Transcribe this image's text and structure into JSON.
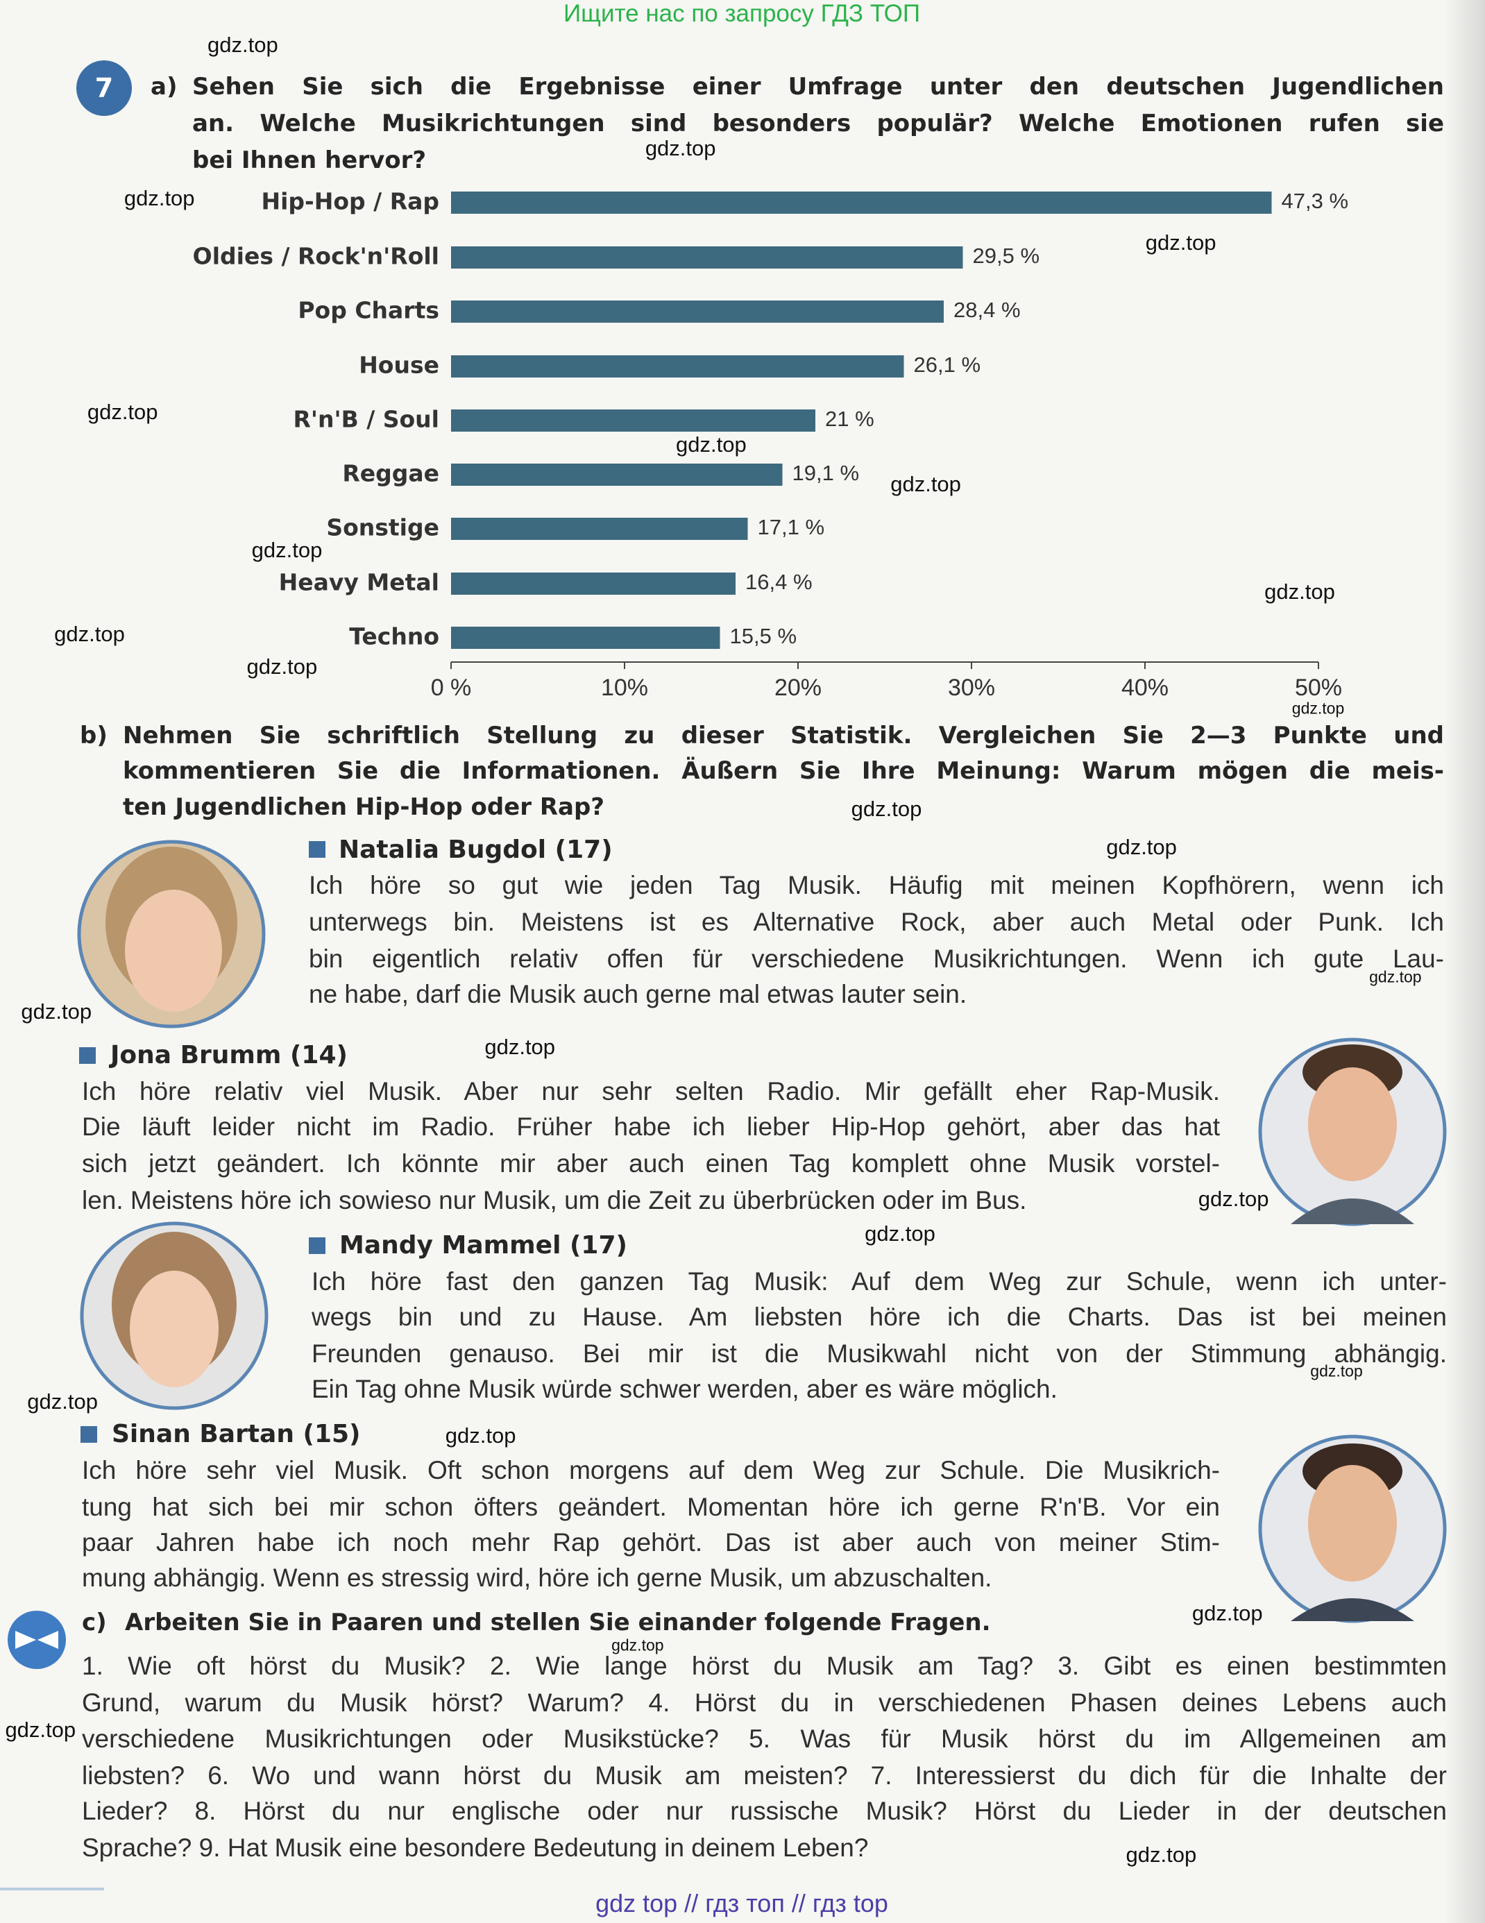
{
  "header": {
    "top_note": "Ищите нас по запросу ГДЗ ТОП"
  },
  "exercise": {
    "number": "7"
  },
  "part_a": {
    "label": "a)",
    "lines": [
      "Sehen Sie sich die Ergebnisse einer Umfrage unter den deutschen Jugendlichen",
      "an. Welche Musikrichtungen sind besonders populär? Welche Emotionen rufen sie",
      "bei Ihnen hervor?"
    ]
  },
  "chart_data": {
    "type": "bar",
    "orientation": "horizontal",
    "categories": [
      "Hip-Hop / Rap",
      "Oldies / Rock'n'Roll",
      "Pop Charts",
      "House",
      "R'n'B / Soul",
      "Reggae",
      "Sonstige",
      "Heavy Metal",
      "Techno"
    ],
    "values": [
      47.3,
      29.5,
      28.4,
      26.1,
      21,
      19.1,
      17.1,
      16.4,
      15.5
    ],
    "value_labels": [
      "47,3 %",
      "29,5 %",
      "28,4 %",
      "26,1 %",
      "21 %",
      "19,1 %",
      "17,1 %",
      "16,4 %",
      "15,5 %"
    ],
    "color": "#3d6a7e",
    "xlim": [
      0,
      50
    ],
    "xticks": [
      {
        "value": 0,
        "label": "0 %"
      },
      {
        "value": 10,
        "label": "10%"
      },
      {
        "value": 20,
        "label": "20%"
      },
      {
        "value": 30,
        "label": "30%"
      },
      {
        "value": 40,
        "label": "40%"
      },
      {
        "value": 50,
        "label": "50%"
      }
    ]
  },
  "part_b": {
    "label": "b)",
    "lines": [
      "Nehmen Sie schriftlich Stellung zu dieser Statistik. Vergleichen Sie 2—3 Punkte und",
      "kommentieren Sie die Informationen. Äußern Sie Ihre Meinung: Warum mögen die meis-",
      "ten Jugendlichen Hip-Hop oder Rap?"
    ]
  },
  "profiles": [
    {
      "name": "Natalia Bugdol (17)",
      "lines": [
        "Ich höre so gut wie jeden Tag Musik. Häufig mit meinen Kopfhörern, wenn ich",
        "unterwegs bin. Meistens ist es Alternative Rock, aber auch Metal oder Punk. Ich",
        "bin eigentlich relativ offen für verschiedene Musikrichtungen. Wenn ich gute Lau-",
        "ne habe, darf die Musik auch gerne mal etwas lauter sein."
      ]
    },
    {
      "name": "Jona Brumm (14)",
      "lines": [
        "Ich höre relativ viel Musik. Aber nur sehr selten Radio. Mir gefällt eher Rap-Musik.",
        "Die läuft leider nicht im Radio. Früher habe ich lieber Hip-Hop gehört, aber das hat",
        "sich jetzt geändert. Ich könnte mir aber auch einen Tag komplett ohne Musik vorstel-",
        "len. Meistens höre ich sowieso nur Musik, um die Zeit zu überbrücken oder im Bus."
      ]
    },
    {
      "name": "Mandy Mammel (17)",
      "lines": [
        "Ich höre fast den ganzen Tag Musik: Auf dem Weg zur Schule, wenn ich unter-",
        "wegs bin und zu Hause. Am liebsten höre ich die Charts. Das ist bei meinen",
        "Freunden genauso. Bei mir ist die Musikwahl nicht von der Stimmung abhängig.",
        "Ein Tag ohne Musik würde schwer werden, aber es wäre möglich."
      ]
    },
    {
      "name": "Sinan Bartan (15)",
      "lines": [
        "Ich höre sehr viel Musik. Oft schon morgens auf dem Weg zur Schule. Die Musikrich-",
        "tung hat sich bei mir schon öfters geändert. Momentan höre ich gerne R'n'B. Vor ein",
        "paar Jahren habe ich noch mehr Rap gehört. Das ist aber auch von meiner Stim-",
        "mung abhängig. Wenn es stressig wird, höre ich gerne Musik, um abzuschalten."
      ]
    }
  ],
  "part_c": {
    "label": "c)",
    "title": "Arbeiten Sie in Paaren und stellen Sie einander folgende Fragen.",
    "lines": [
      "1. Wie oft hörst du Musik? 2. Wie lange hörst du Musik am Tag? 3. Gibt es einen bestimmten",
      "Grund, warum du Musik hörst? Warum? 4. Hörst du in verschiedenen Phasen deines Lebens auch",
      "verschiedene Musikrichtungen oder Musikstücke? 5. Was für Musik hörst du im Allgemeinen am",
      "liebsten? 6. Wo und wann hörst du Musik am meisten? 7. Interessierst du dich für die Inhalte der",
      "Lieder? 8. Hörst du nur englische oder nur russische Musik? Hörst du Lieder in der deutschen",
      "Sprache? 9. Hat Musik eine besondere Bedeutung in deinem Leben?"
    ]
  },
  "footer": {
    "note": "gdz top  //  гдз топ  //  гдз top"
  },
  "watermarks": [
    "gdz.top",
    "gdz.top",
    "gdz.top",
    "gdz.top",
    "gdz.top",
    "gdz.top",
    "gdz.top",
    "gdz.top",
    "gdz.top",
    "gdz.top",
    "gdz.top",
    "gdz.top",
    "gdz.top",
    "gdz.top",
    "gdz.top",
    "gdz.top",
    "gdz.top",
    "gdz.top",
    "gdz.top",
    "gdz.top",
    "gdz.top",
    "gdz.top",
    "gdz.top",
    "gdz.top",
    "gdz.top",
    "gdz.top"
  ]
}
